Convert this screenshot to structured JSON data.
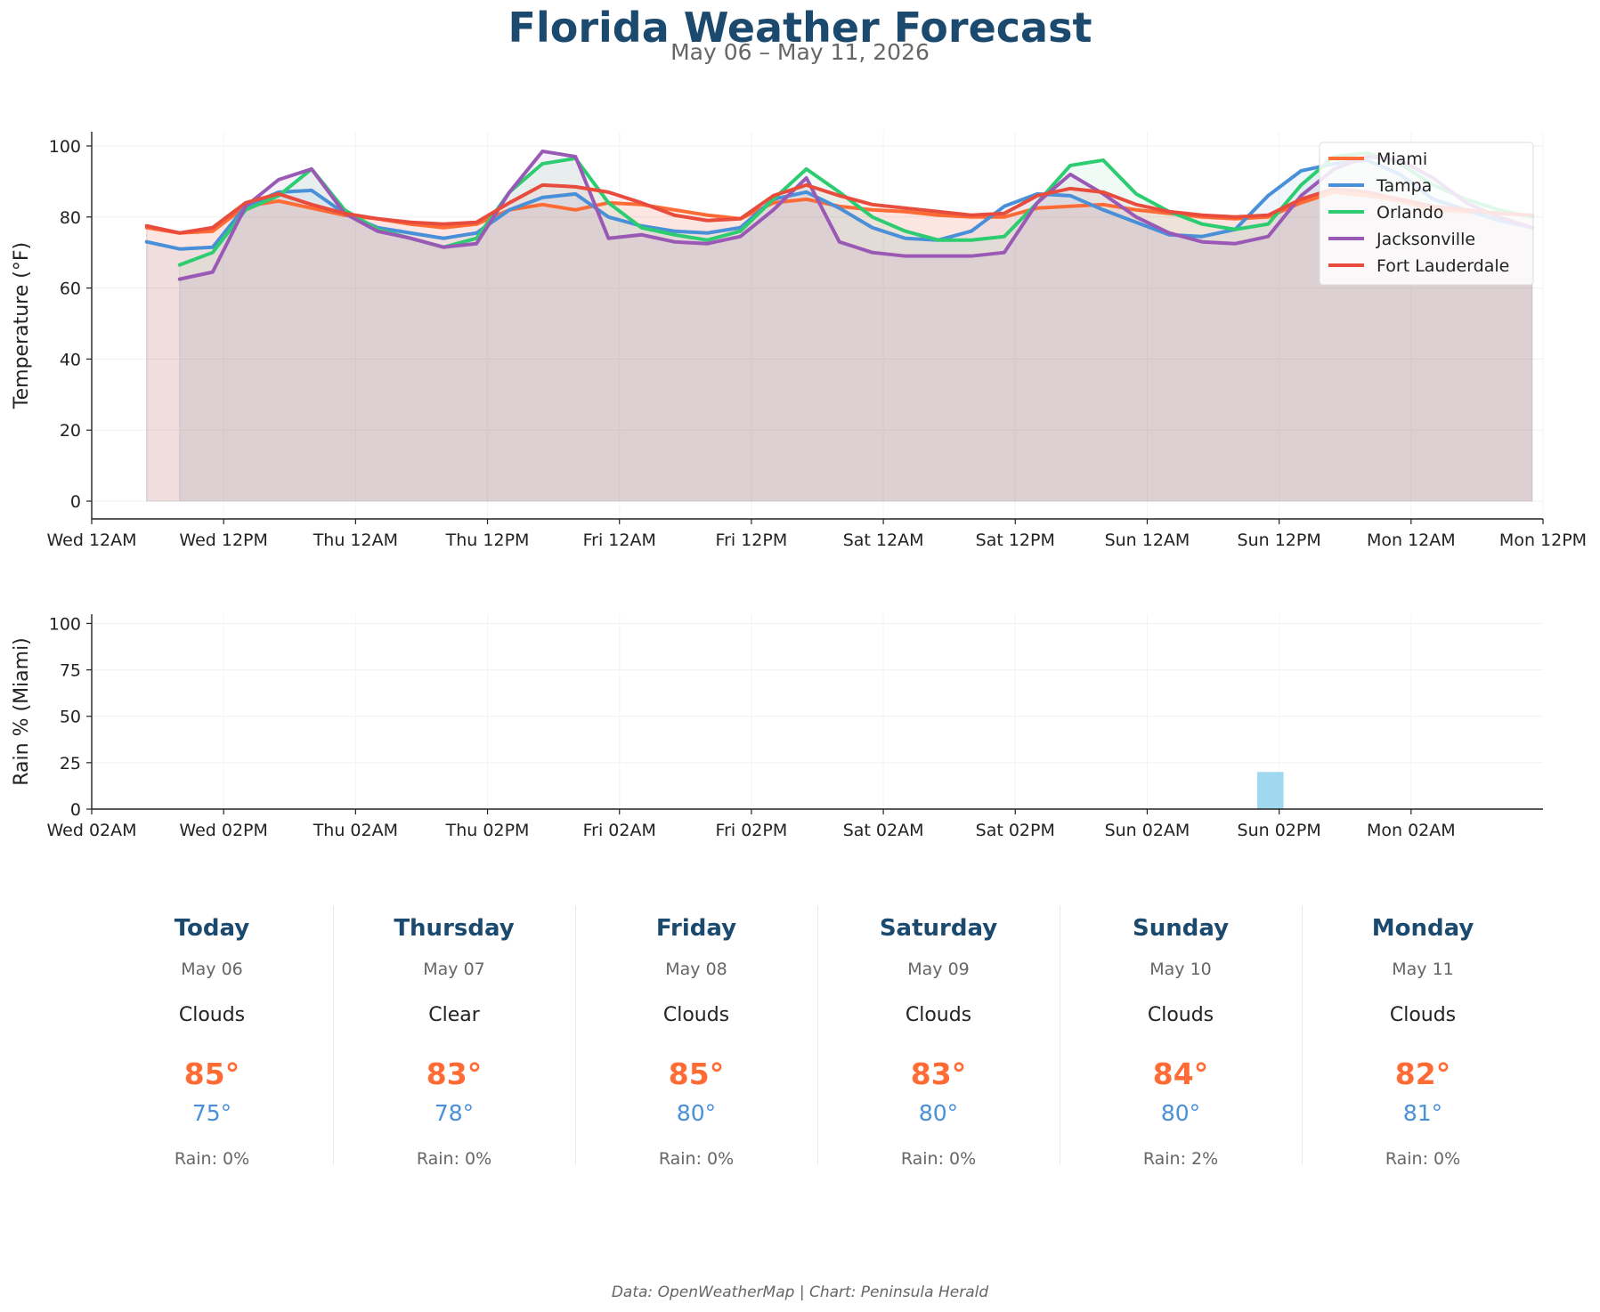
{
  "header": {
    "title": "Florida Weather Forecast",
    "subtitle": "May 06 – May 11, 2026"
  },
  "chart_data": [
    {
      "type": "line",
      "ylabel": "Temperature (°F)",
      "ylim": [
        -5,
        104
      ],
      "yticks": [
        0,
        20,
        40,
        60,
        80,
        100
      ],
      "xlim": [
        0,
        132
      ],
      "xticks": [
        {
          "x": 0,
          "label": "Wed 12AM"
        },
        {
          "x": 12,
          "label": "Wed 12PM"
        },
        {
          "x": 24,
          "label": "Thu 12AM"
        },
        {
          "x": 36,
          "label": "Thu 12PM"
        },
        {
          "x": 48,
          "label": "Fri 12AM"
        },
        {
          "x": 60,
          "label": "Fri 12PM"
        },
        {
          "x": 72,
          "label": "Sat 12AM"
        },
        {
          "x": 84,
          "label": "Sat 12PM"
        },
        {
          "x": 96,
          "label": "Sun 12AM"
        },
        {
          "x": 108,
          "label": "Sun 12PM"
        },
        {
          "x": 120,
          "label": "Mon 12AM"
        },
        {
          "x": 132,
          "label": "Mon 12PM"
        }
      ],
      "grid": true,
      "legend": "top-right",
      "series": [
        {
          "name": "Miami",
          "color": "#ff6b35",
          "x": [
            5,
            8,
            11,
            14,
            17,
            20,
            23,
            26,
            29,
            32,
            35,
            38,
            41,
            44,
            47,
            50,
            53,
            56,
            59,
            62,
            65,
            68,
            71,
            74,
            77,
            80,
            83,
            86,
            89,
            92,
            95,
            98,
            101,
            104,
            107,
            110,
            113,
            116,
            119,
            122,
            125,
            128,
            131
          ],
          "y": [
            77,
            75.5,
            76,
            83,
            84.5,
            82.5,
            80.5,
            79.5,
            78,
            77,
            78,
            82,
            83.5,
            82,
            84,
            83.5,
            82,
            80.5,
            79.5,
            84,
            85,
            83,
            82,
            81.5,
            80.5,
            80,
            80,
            82.5,
            83,
            83.5,
            82,
            81,
            80,
            79.5,
            80,
            84,
            87,
            86,
            84.5,
            82,
            81.5,
            81,
            80.5
          ]
        },
        {
          "name": "Tampa",
          "color": "#4a90d9",
          "x": [
            5,
            8,
            11,
            14,
            17,
            20,
            23,
            26,
            29,
            32,
            35,
            38,
            41,
            44,
            47,
            50,
            53,
            56,
            59,
            62,
            65,
            68,
            71,
            74,
            77,
            80,
            83,
            86,
            89,
            92,
            95,
            98,
            101,
            104,
            107,
            110,
            113,
            116,
            119,
            122,
            125,
            128,
            131
          ],
          "y": [
            73,
            71,
            71.5,
            83,
            87,
            87.5,
            81,
            77,
            75.5,
            74,
            75.5,
            82,
            85.5,
            86.5,
            80,
            77.5,
            76,
            75.5,
            77,
            85,
            87,
            82.5,
            77,
            74,
            73.5,
            76,
            83,
            86.5,
            86,
            82,
            78.5,
            75,
            74.5,
            76.5,
            86,
            93,
            95,
            96,
            92,
            85,
            82,
            79,
            77
          ]
        },
        {
          "name": "Orlando",
          "color": "#2ecc71",
          "x": [
            8,
            11,
            14,
            17,
            20,
            23,
            26,
            29,
            32,
            35,
            38,
            41,
            44,
            47,
            50,
            53,
            56,
            59,
            62,
            65,
            68,
            71,
            74,
            77,
            80,
            83,
            86,
            89,
            92,
            95,
            98,
            101,
            104,
            107,
            110,
            113,
            116,
            119,
            122,
            125,
            128,
            131
          ],
          "y": [
            66.5,
            70,
            82,
            86,
            93.5,
            82,
            76.5,
            74,
            71.5,
            74,
            87,
            95,
            96.5,
            84,
            77,
            75,
            73.5,
            76,
            85,
            93.5,
            87,
            80,
            76,
            73.5,
            73.5,
            74.5,
            84,
            94.5,
            96,
            86.5,
            81.5,
            78,
            76.5,
            78,
            89,
            97,
            98,
            95,
            89,
            85,
            82,
            80
          ]
        },
        {
          "name": "Jacksonville",
          "color": "#9b59b6",
          "x": [
            8,
            11,
            14,
            17,
            20,
            23,
            26,
            29,
            32,
            35,
            38,
            41,
            44,
            47,
            50,
            53,
            56,
            59,
            62,
            65,
            68,
            71,
            74,
            77,
            80,
            83,
            86,
            89,
            92,
            95,
            98,
            101,
            104,
            107,
            110,
            113,
            116,
            119,
            122,
            125,
            128,
            131
          ],
          "y": [
            62.5,
            64.5,
            83,
            90.5,
            93.5,
            81,
            76,
            74,
            71.5,
            72.5,
            87,
            98.5,
            97,
            74,
            75,
            73,
            72.5,
            74.5,
            82,
            91,
            73,
            70,
            69,
            69,
            69,
            70,
            84,
            92,
            86.5,
            80,
            75.5,
            73,
            72.5,
            74.5,
            86,
            93.5,
            97,
            96,
            91,
            84,
            80,
            77
          ]
        },
        {
          "name": "Fort Lauderdale",
          "color": "#e74c3c",
          "x": [
            5,
            8,
            11,
            14,
            17,
            20,
            23,
            26,
            29,
            32,
            35,
            38,
            41,
            44,
            47,
            50,
            53,
            56,
            59,
            62,
            65,
            68,
            71,
            74,
            77,
            80,
            83,
            86,
            89,
            92,
            95,
            98,
            101,
            104,
            107,
            110,
            113,
            116,
            119,
            122,
            125,
            128,
            131
          ],
          "y": [
            77.5,
            75.5,
            77,
            84,
            86.5,
            83.5,
            81,
            79.5,
            78.5,
            78,
            78.5,
            84,
            89,
            88.5,
            87,
            84,
            80.5,
            79,
            79.5,
            86,
            89,
            86,
            83.5,
            82.5,
            81.5,
            80.5,
            81,
            86,
            88,
            87,
            83.5,
            81.5,
            80.5,
            80,
            80.5,
            85,
            88,
            87,
            85,
            83,
            82,
            81,
            80.5
          ]
        }
      ]
    },
    {
      "type": "bar",
      "ylabel": "Rain % (Miami)",
      "ylim": [
        0,
        105
      ],
      "yticks": [
        0,
        25,
        50,
        75,
        100
      ],
      "xlim": [
        0,
        132
      ],
      "xticks": [
        {
          "x": 0,
          "label": "Wed 02AM"
        },
        {
          "x": 12,
          "label": "Wed 02PM"
        },
        {
          "x": 24,
          "label": "Thu 02AM"
        },
        {
          "x": 36,
          "label": "Thu 02PM"
        },
        {
          "x": 48,
          "label": "Fri 02AM"
        },
        {
          "x": 60,
          "label": "Fri 02PM"
        },
        {
          "x": 72,
          "label": "Sat 02AM"
        },
        {
          "x": 84,
          "label": "Sat 02PM"
        },
        {
          "x": 96,
          "label": "Sun 02AM"
        },
        {
          "x": 108,
          "label": "Sun 02PM"
        },
        {
          "x": 120,
          "label": "Mon 02AM"
        }
      ],
      "grid": true,
      "color": "#87ceeb",
      "bars": [
        {
          "x": 106,
          "width": 2.4,
          "value": 20
        }
      ]
    }
  ],
  "forecast": [
    {
      "day": "Today",
      "date": "May 06",
      "condition": "Clouds",
      "high": "85°",
      "low": "75°",
      "rain": "Rain: 0%"
    },
    {
      "day": "Thursday",
      "date": "May 07",
      "condition": "Clear",
      "high": "83°",
      "low": "78°",
      "rain": "Rain: 0%"
    },
    {
      "day": "Friday",
      "date": "May 08",
      "condition": "Clouds",
      "high": "85°",
      "low": "80°",
      "rain": "Rain: 0%"
    },
    {
      "day": "Saturday",
      "date": "May 09",
      "condition": "Clouds",
      "high": "83°",
      "low": "80°",
      "rain": "Rain: 0%"
    },
    {
      "day": "Sunday",
      "date": "May 10",
      "condition": "Clouds",
      "high": "84°",
      "low": "80°",
      "rain": "Rain: 2%"
    },
    {
      "day": "Monday",
      "date": "May 11",
      "condition": "Clouds",
      "high": "82°",
      "low": "81°",
      "rain": "Rain: 0%"
    }
  ],
  "footer": "Data: OpenWeatherMap | Chart: Peninsula Herald"
}
